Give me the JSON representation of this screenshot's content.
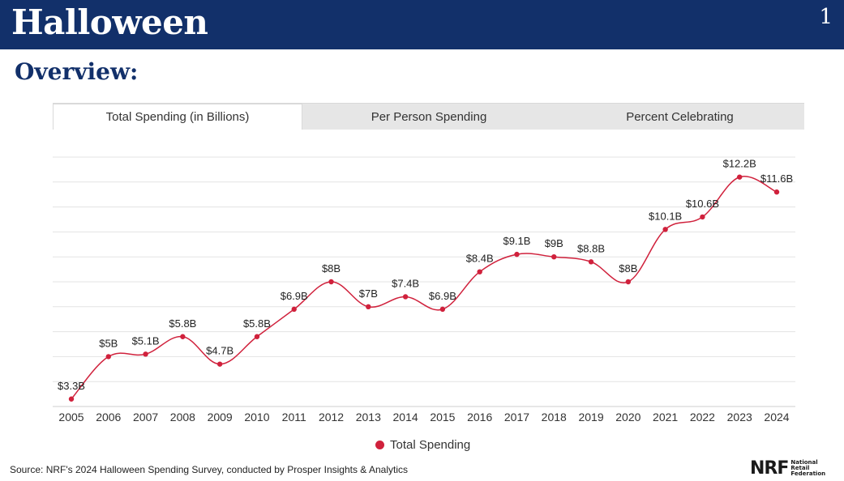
{
  "header": {
    "title": "Halloween",
    "page_number": "1"
  },
  "section_title": "Overview:",
  "tabs": [
    {
      "label": "Total Spending (in Billions)",
      "active": true
    },
    {
      "label": "Per Person Spending",
      "active": false
    },
    {
      "label": "Percent Celebrating",
      "active": false
    }
  ],
  "chart_data": {
    "type": "line",
    "x": [
      "2005",
      "2006",
      "2007",
      "2008",
      "2009",
      "2010",
      "2011",
      "2012",
      "2013",
      "2014",
      "2015",
      "2016",
      "2017",
      "2018",
      "2019",
      "2020",
      "2021",
      "2022",
      "2023",
      "2024"
    ],
    "series": [
      {
        "name": "Total Spending",
        "values": [
          3.3,
          5,
          5.1,
          5.8,
          4.7,
          5.8,
          6.9,
          8,
          7,
          7.4,
          6.9,
          8.4,
          9.1,
          9,
          8.8,
          8,
          10.1,
          10.6,
          12.2,
          11.6
        ],
        "labels": [
          "$3.3B",
          "$5B",
          "$5.1B",
          "$5.8B",
          "$4.7B",
          "$5.8B",
          "$6.9B",
          "$8B",
          "$7B",
          "$7.4B",
          "$6.9B",
          "$8.4B",
          "$9.1B",
          "$9B",
          "$8.8B",
          "$8B",
          "$10.1B",
          "$10.6B",
          "$12.2B",
          "$11.6B"
        ],
        "color": "#d0213c"
      }
    ],
    "ylim": [
      3,
      13
    ],
    "grid": true,
    "legend": "bottom"
  },
  "source_note": "Source: NRF's 2024 Halloween Spending Survey, conducted by Prosper Insights & Analytics",
  "logo": {
    "mark": "NRF",
    "line1": "National",
    "line2": "Retail",
    "line3": "Federation"
  },
  "colors": {
    "header_bg": "#12306a",
    "accent": "#d0213c"
  }
}
